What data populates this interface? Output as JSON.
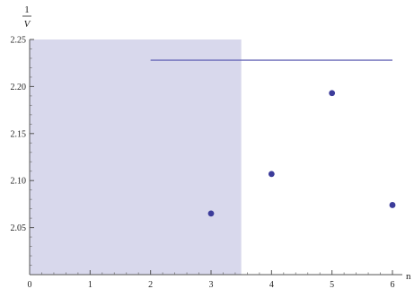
{
  "chart_data": {
    "type": "scatter",
    "x_label": "n",
    "y_label": {
      "numerator": "1",
      "denominator": "V"
    },
    "x_ticks": [
      0,
      1,
      2,
      3,
      4,
      5,
      6
    ],
    "y_ticks": [
      "2.05",
      "2.10",
      "2.15",
      "2.20",
      "2.25"
    ],
    "xlim": [
      0,
      6.2
    ],
    "ylim": [
      2.0,
      2.25
    ],
    "shaded_region": {
      "x_range": [
        0,
        3.5
      ],
      "color": "#d8d8ec"
    },
    "reference_line": {
      "x_range": [
        2,
        6
      ],
      "y": 2.228,
      "color": "#6a6ab8"
    },
    "points": [
      {
        "x": 3,
        "y": 2.065
      },
      {
        "x": 4,
        "y": 2.107
      },
      {
        "x": 5,
        "y": 2.193
      },
      {
        "x": 6,
        "y": 2.074
      }
    ],
    "point_color": "#3c3c9a",
    "grid": false
  }
}
